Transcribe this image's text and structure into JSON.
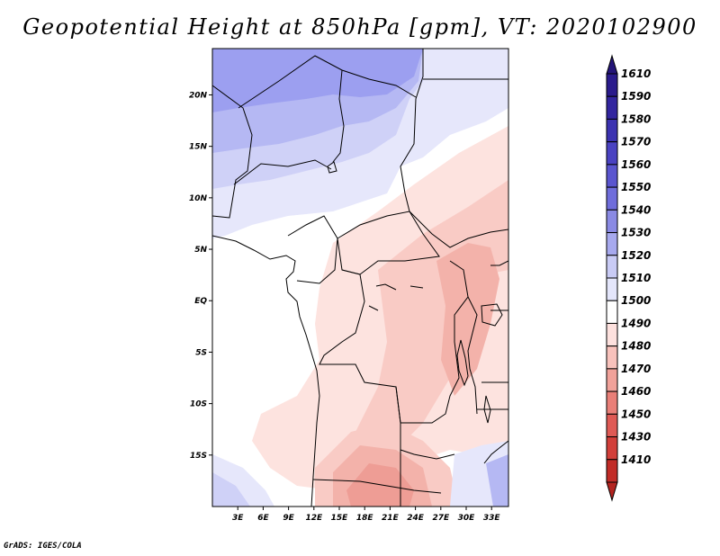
{
  "title": "Geopotential Height at 850hPa [gpm], VT: 2020102900",
  "credit": "GrADS: IGES/COLA",
  "map": {
    "lon_range": [
      0,
      35
    ],
    "lat_range": [
      -20,
      24.5
    ],
    "lat_ticks": [
      {
        "value": 20,
        "label": "20N"
      },
      {
        "value": 15,
        "label": "15N"
      },
      {
        "value": 10,
        "label": "10N"
      },
      {
        "value": 5,
        "label": "5N"
      },
      {
        "value": 0,
        "label": "EQ"
      },
      {
        "value": -5,
        "label": "5S"
      },
      {
        "value": -10,
        "label": "10S"
      },
      {
        "value": -15,
        "label": "15S"
      }
    ],
    "lon_ticks": [
      {
        "value": 3,
        "label": "3E"
      },
      {
        "value": 6,
        "label": "6E"
      },
      {
        "value": 9,
        "label": "9E"
      },
      {
        "value": 12,
        "label": "12E"
      },
      {
        "value": 15,
        "label": "15E"
      },
      {
        "value": 18,
        "label": "18E"
      },
      {
        "value": 21,
        "label": "21E"
      },
      {
        "value": 24,
        "label": "24E"
      },
      {
        "value": 27,
        "label": "27E"
      },
      {
        "value": 30,
        "label": "30E"
      },
      {
        "value": 33,
        "label": "33E"
      }
    ]
  },
  "colorbar": {
    "levels": [
      {
        "label": "1610",
        "color": "#2a1b8c"
      },
      {
        "label": "1590",
        "color": "#32259f"
      },
      {
        "label": "1580",
        "color": "#3b32b1"
      },
      {
        "label": "1570",
        "color": "#4a42c2"
      },
      {
        "label": "1560",
        "color": "#5a55cf"
      },
      {
        "label": "1550",
        "color": "#6f6ddb"
      },
      {
        "label": "1540",
        "color": "#8a8ae4"
      },
      {
        "label": "1530",
        "color": "#a7a9ee"
      },
      {
        "label": "1520",
        "color": "#c9cbf5"
      },
      {
        "label": "1510",
        "color": "#e4e6fb"
      },
      {
        "label": "1500",
        "color": "#ffffff"
      },
      {
        "label": "1490",
        "color": "#fde1de"
      },
      {
        "label": "1480",
        "color": "#f8c2bc"
      },
      {
        "label": "1470",
        "color": "#f1a29a"
      },
      {
        "label": "1460",
        "color": "#e97f78"
      },
      {
        "label": "1450",
        "color": "#df5a55"
      },
      {
        "label": "1430",
        "color": "#d23f3a"
      },
      {
        "label": "1410",
        "color": "#c12c27"
      }
    ],
    "top_arrow_color": "#241578",
    "bottom_arrow_color": "#b32420"
  },
  "field_colors": {
    "h1550": "#9c9ff0",
    "h1540": "#b5b8f3",
    "h1530": "#cfd1f7",
    "h1520": "#e6e7fb",
    "h1510": "#ffffff",
    "h1500": "#fde3df",
    "h1490": "#f9cbc5",
    "h1480": "#f3b2aa",
    "h1470": "#ee9d95"
  }
}
